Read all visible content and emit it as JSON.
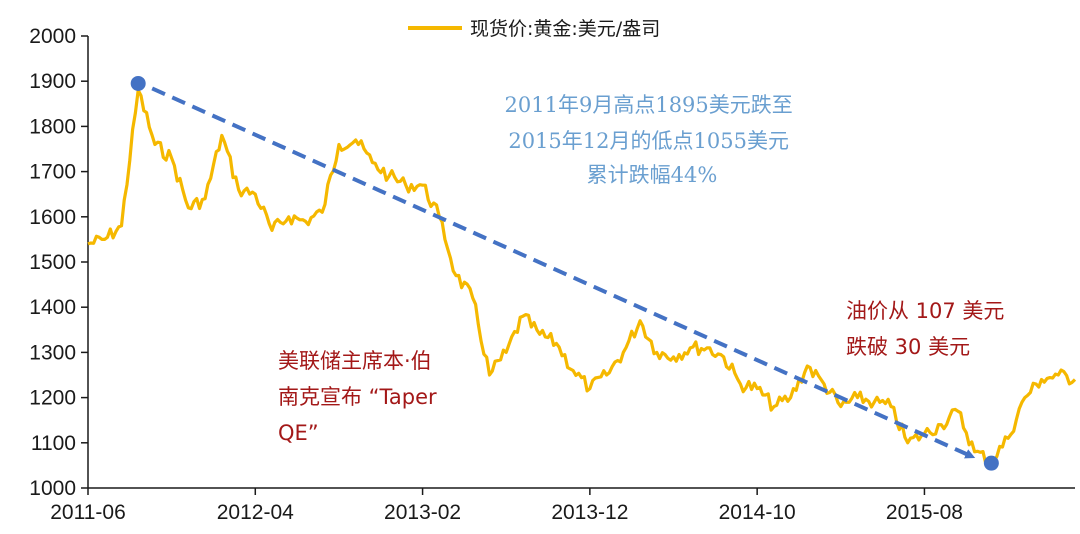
{
  "chart_data": {
    "type": "line",
    "title": "",
    "xlabel": "",
    "ylabel": "",
    "ylim": [
      1000,
      2000
    ],
    "yticks": [
      1000,
      1100,
      1200,
      1300,
      1400,
      1500,
      1600,
      1700,
      1800,
      1900,
      2000
    ],
    "xlim": [
      "2011-06",
      "2016-05"
    ],
    "xticks": [
      "2011-06",
      "2012-04",
      "2013-02",
      "2013-12",
      "2014-10",
      "2015-08"
    ],
    "grid": false,
    "legend": "top-center",
    "colors": {
      "series": "#f5b800",
      "trend": "#4472c4",
      "annotation_blue": "#6a9fd0",
      "annotation_red": "#a31818"
    },
    "series": [
      {
        "name": "现货价:黄金:美元/盎司",
        "x": [
          "2011-06",
          "2011-07",
          "2011-08",
          "2011-09",
          "2011-10",
          "2011-11",
          "2011-12",
          "2012-01",
          "2012-02",
          "2012-03",
          "2012-04",
          "2012-05",
          "2012-06",
          "2012-07",
          "2012-08",
          "2012-09",
          "2012-10",
          "2012-11",
          "2012-12",
          "2013-01",
          "2013-02",
          "2013-03",
          "2013-04",
          "2013-05",
          "2013-06",
          "2013-07",
          "2013-08",
          "2013-09",
          "2013-10",
          "2013-11",
          "2013-12",
          "2014-01",
          "2014-02",
          "2014-03",
          "2014-04",
          "2014-05",
          "2014-06",
          "2014-07",
          "2014-08",
          "2014-09",
          "2014-10",
          "2014-11",
          "2014-12",
          "2015-01",
          "2015-02",
          "2015-03",
          "2015-04",
          "2015-05",
          "2015-06",
          "2015-07",
          "2015-08",
          "2015-09",
          "2015-10",
          "2015-11",
          "2015-12",
          "2016-01",
          "2016-02",
          "2016-03",
          "2016-04",
          "2016-05"
        ],
        "values": [
          1540,
          1550,
          1580,
          1880,
          1760,
          1730,
          1620,
          1640,
          1780,
          1660,
          1650,
          1570,
          1600,
          1590,
          1610,
          1760,
          1770,
          1720,
          1690,
          1670,
          1670,
          1600,
          1470,
          1420,
          1250,
          1300,
          1380,
          1340,
          1320,
          1260,
          1220,
          1250,
          1300,
          1370,
          1300,
          1290,
          1310,
          1310,
          1290,
          1230,
          1220,
          1180,
          1200,
          1270,
          1230,
          1180,
          1200,
          1190,
          1180,
          1100,
          1120,
          1140,
          1170,
          1080,
          1060,
          1110,
          1200,
          1240,
          1250,
          1240
        ]
      }
    ],
    "trend_line": {
      "from": {
        "x": "2011-09",
        "y": 1895
      },
      "to": {
        "x": "2015-12",
        "y": 1055
      }
    },
    "annotations": [
      {
        "lines": [
          "2011年9月高点1895美元跌至",
          "2015年12月的低点1055美元",
          "累计跌幅44%"
        ]
      },
      {
        "lines": [
          "美联储主席本·伯",
          "南克宣布 “Taper",
          "QE”"
        ]
      },
      {
        "lines": [
          "油价从 107 美元",
          "跌破 30 美元"
        ]
      }
    ]
  }
}
